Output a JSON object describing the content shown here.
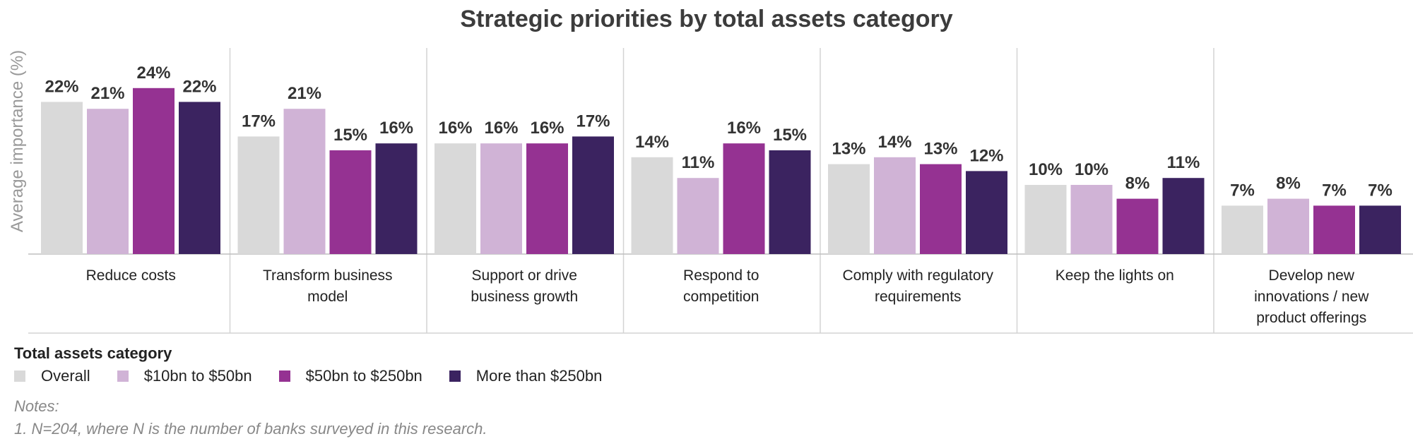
{
  "chart_data": {
    "type": "bar",
    "title": "Strategic priorities by total assets category",
    "ylabel": "Average importance (%)",
    "ylim": [
      0,
      27
    ],
    "grid": false,
    "categories": [
      [
        "Reduce costs"
      ],
      [
        "Transform business",
        "model"
      ],
      [
        "Support or drive",
        "business growth"
      ],
      [
        "Respond to",
        "competition"
      ],
      [
        "Comply with regulatory",
        "requirements"
      ],
      [
        "Keep the lights on"
      ],
      [
        "Develop new",
        "innovations / new",
        "product offerings"
      ]
    ],
    "series": [
      {
        "name": "Overall",
        "color": "#d9d9d9",
        "values": [
          22,
          17,
          16,
          14,
          13,
          10,
          7
        ],
        "labels": [
          "22%",
          "17%",
          "16%",
          "14%",
          "13%",
          "10%",
          "7%"
        ]
      },
      {
        "name": "$10bn to $50bn",
        "color": "#d0b3d6",
        "values": [
          21,
          21,
          16,
          11,
          14,
          10,
          8
        ],
        "labels": [
          "21%",
          "21%",
          "16%",
          "11%",
          "14%",
          "10%",
          "8%"
        ]
      },
      {
        "name": "$50bn to $250bn",
        "color": "#953292",
        "values": [
          24,
          15,
          16,
          16,
          13,
          8,
          7
        ],
        "labels": [
          "24%",
          "15%",
          "16%",
          "16%",
          "13%",
          "8%",
          "7%"
        ]
      },
      {
        "name": "More than $250bn",
        "color": "#3b2360",
        "values": [
          22,
          16,
          17,
          15,
          12,
          11,
          7
        ],
        "labels": [
          "22%",
          "16%",
          "17%",
          "15%",
          "12%",
          "11%",
          "7%"
        ]
      }
    ]
  },
  "legend": {
    "title": "Total assets category"
  },
  "notes": {
    "heading": "Notes:",
    "items": [
      "1.   N=204, where N is the number of banks surveyed in this research."
    ]
  }
}
